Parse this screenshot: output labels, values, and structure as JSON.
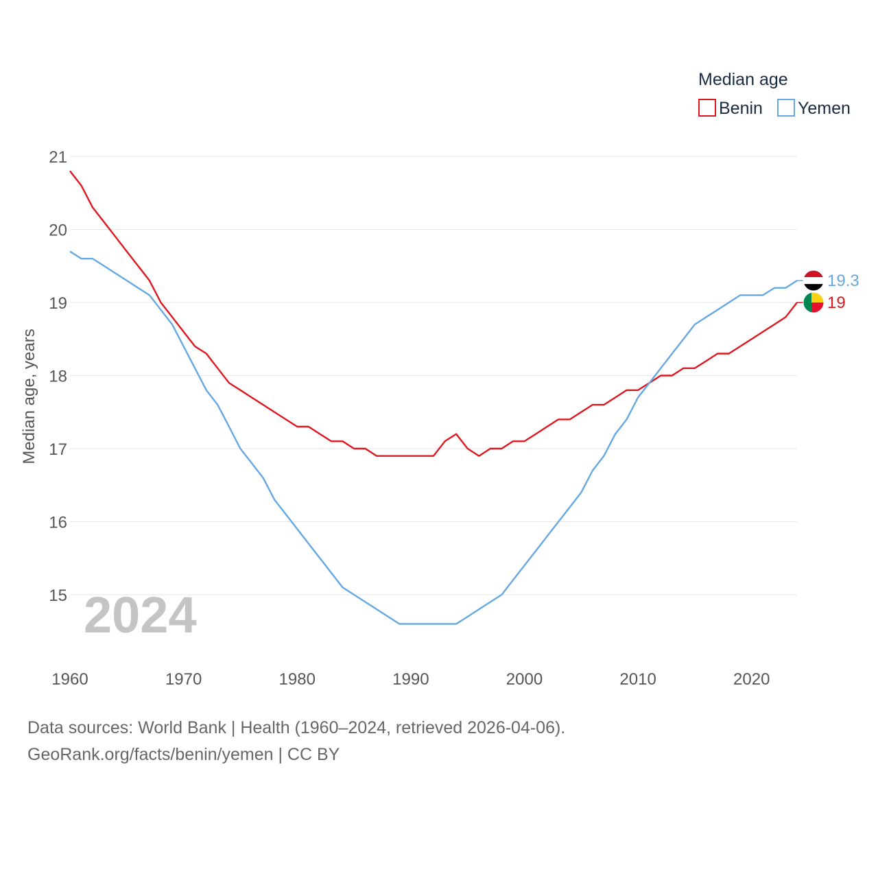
{
  "chart_data": {
    "type": "line",
    "legend_title": "Median age",
    "ylabel": "Median age, years",
    "xlabel": "",
    "year_label": "2024",
    "xlim": [
      1960,
      2024
    ],
    "ylim": [
      14.2,
      21
    ],
    "x_ticks": [
      1960,
      1970,
      1980,
      1990,
      2000,
      2010,
      2020
    ],
    "y_ticks": [
      15,
      16,
      17,
      18,
      19,
      20,
      21
    ],
    "grid": true,
    "legend_position": "top-right",
    "x": [
      1960,
      1961,
      1962,
      1963,
      1964,
      1965,
      1966,
      1967,
      1968,
      1969,
      1970,
      1971,
      1972,
      1973,
      1974,
      1975,
      1976,
      1977,
      1978,
      1979,
      1980,
      1981,
      1982,
      1983,
      1984,
      1985,
      1986,
      1987,
      1988,
      1989,
      1990,
      1991,
      1992,
      1993,
      1994,
      1995,
      1996,
      1997,
      1998,
      1999,
      2000,
      2001,
      2002,
      2003,
      2004,
      2005,
      2006,
      2007,
      2008,
      2009,
      2010,
      2011,
      2012,
      2013,
      2014,
      2015,
      2016,
      2017,
      2018,
      2019,
      2020,
      2021,
      2022,
      2023,
      2024
    ],
    "series": [
      {
        "name": "Benin",
        "color": "#e0161e",
        "end_label": "19",
        "values": [
          20.8,
          20.6,
          20.3,
          20.1,
          19.9,
          19.7,
          19.5,
          19.3,
          19.0,
          18.8,
          18.6,
          18.4,
          18.3,
          18.1,
          17.9,
          17.8,
          17.7,
          17.6,
          17.5,
          17.4,
          17.3,
          17.3,
          17.2,
          17.1,
          17.1,
          17.0,
          17.0,
          16.9,
          16.9,
          16.9,
          16.9,
          16.9,
          16.9,
          17.1,
          17.2,
          17.0,
          16.9,
          17.0,
          17.0,
          17.1,
          17.1,
          17.2,
          17.3,
          17.4,
          17.4,
          17.5,
          17.6,
          17.6,
          17.7,
          17.8,
          17.8,
          17.9,
          18.0,
          18.0,
          18.1,
          18.1,
          18.2,
          18.3,
          18.3,
          18.4,
          18.5,
          18.6,
          18.7,
          18.8,
          19.0
        ]
      },
      {
        "name": "Yemen",
        "color": "#64a8e3",
        "end_label": "19.3",
        "values": [
          19.7,
          19.6,
          19.6,
          19.5,
          19.4,
          19.3,
          19.2,
          19.1,
          18.9,
          18.7,
          18.4,
          18.1,
          17.8,
          17.6,
          17.3,
          17.0,
          16.8,
          16.6,
          16.3,
          16.1,
          15.9,
          15.7,
          15.5,
          15.3,
          15.1,
          15.0,
          14.9,
          14.8,
          14.7,
          14.6,
          14.6,
          14.6,
          14.6,
          14.6,
          14.6,
          14.7,
          14.8,
          14.9,
          15.0,
          15.2,
          15.4,
          15.6,
          15.8,
          16.0,
          16.2,
          16.4,
          16.7,
          16.9,
          17.2,
          17.4,
          17.7,
          17.9,
          18.1,
          18.3,
          18.5,
          18.7,
          18.8,
          18.9,
          19.0,
          19.1,
          19.1,
          19.1,
          19.2,
          19.2,
          19.3
        ]
      }
    ]
  },
  "footer": {
    "line1": "Data sources: World Bank | Health (1960–2024, retrieved 2026-04-06).",
    "line2": "GeoRank.org/facts/benin/yemen | CC BY"
  }
}
